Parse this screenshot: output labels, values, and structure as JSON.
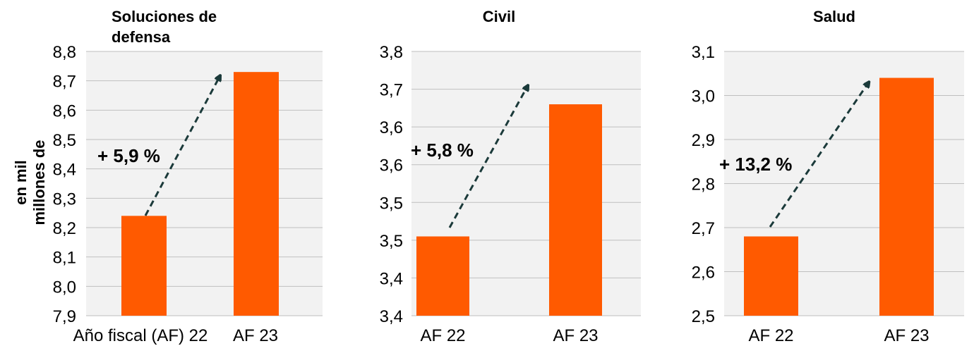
{
  "colors": {
    "bar": "#ff5a00",
    "plot_background": "#f2f2f2",
    "gridline": "#bfbfbf",
    "arrow": "#1b3a3a",
    "text": "#000000"
  },
  "chart_data": [
    {
      "type": "bar",
      "title": "Soluciones de defensa",
      "ylabel": "en mil millones de",
      "categories": [
        "Año fiscal (AF) 22",
        "AF 23"
      ],
      "values": [
        8.24,
        8.73
      ],
      "ylim": [
        7.9,
        8.8
      ],
      "yticks": [
        "7,9",
        "8,0",
        "8,1",
        "8,2",
        "8,3",
        "8,4",
        "8,5",
        "8,6",
        "8,7",
        "8,8"
      ],
      "annotation": "+ 5,9 %",
      "grid": true
    },
    {
      "type": "bar",
      "title": "Civil",
      "ylabel": "",
      "categories": [
        "AF 22",
        "AF 23"
      ],
      "values": [
        3.52,
        3.72
      ],
      "ylim": [
        3.4,
        3.8
      ],
      "yticks": [
        "3,4",
        "3,4",
        "3,5",
        "3,5",
        "3,6",
        "3,6",
        "3,7",
        "3,8"
      ],
      "annotation": "+ 5,8 %",
      "grid": true
    },
    {
      "type": "bar",
      "title": "Salud",
      "ylabel": "",
      "categories": [
        "AF 22",
        "AF 23"
      ],
      "values": [
        2.68,
        3.04
      ],
      "ylim": [
        2.5,
        3.1
      ],
      "yticks": [
        "2,5",
        "2,6",
        "2,7",
        "2,8",
        "2,9",
        "3,0",
        "3,1"
      ],
      "annotation": "+ 13,2 %",
      "grid": true
    }
  ]
}
